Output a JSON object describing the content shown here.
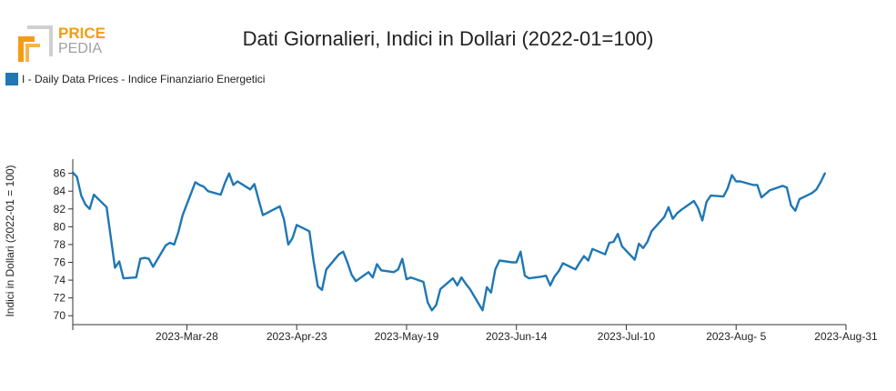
{
  "logo": {
    "line1": "PRICE",
    "line2": "PEDIA",
    "accent_color": "#f39c12",
    "text_color": "#9a9a9a"
  },
  "legend": {
    "label": "I - Daily Data Prices - Indice Finanziario Energetici",
    "color": "#1f77b4"
  },
  "chart_data": {
    "type": "line",
    "title": "Dati Giornalieri, Indici in Dollari (2022-01=100)",
    "ylabel": "Indici in Dollari (2022-01 = 100)",
    "xlabel": "",
    "ylim": [
      69,
      87.6
    ],
    "xlim": [
      "2023-03-01",
      "2023-08-31"
    ],
    "yticks": [
      70,
      72,
      74,
      76,
      78,
      80,
      82,
      84,
      86
    ],
    "xticks": [
      "2023-Mar-28",
      "2023-Apr-23",
      "2023-May-19",
      "2023-Jun-14",
      "2023-Jul-10",
      "2023-Aug- 5",
      "2023-Aug-31"
    ],
    "xtick_dates": [
      "2023-03-28",
      "2023-04-23",
      "2023-05-19",
      "2023-06-14",
      "2023-07-10",
      "2023-08-05",
      "2023-08-31"
    ],
    "grid": false,
    "legend_position": "top-left",
    "series": [
      {
        "name": "I - Daily Data Prices - Indice Finanziario Energetici",
        "color": "#1f77b4",
        "points": [
          [
            "2023-03-01",
            86.1
          ],
          [
            "2023-03-02",
            85.6
          ],
          [
            "2023-03-03",
            83.5
          ],
          [
            "2023-03-04",
            82.5
          ],
          [
            "2023-03-05",
            82.0
          ],
          [
            "2023-03-06",
            83.6
          ],
          [
            "2023-03-09",
            82.2
          ],
          [
            "2023-03-10",
            78.8
          ],
          [
            "2023-03-11",
            75.4
          ],
          [
            "2023-03-12",
            76.1
          ],
          [
            "2023-03-13",
            74.2
          ],
          [
            "2023-03-16",
            74.3
          ],
          [
            "2023-03-17",
            76.4
          ],
          [
            "2023-03-18",
            76.5
          ],
          [
            "2023-03-19",
            76.4
          ],
          [
            "2023-03-20",
            75.5
          ],
          [
            "2023-03-23",
            77.9
          ],
          [
            "2023-03-24",
            78.2
          ],
          [
            "2023-03-25",
            78.0
          ],
          [
            "2023-03-26",
            79.4
          ],
          [
            "2023-03-27",
            81.3
          ],
          [
            "2023-03-30",
            85.0
          ],
          [
            "2023-03-31",
            84.7
          ],
          [
            "2023-04-01",
            84.5
          ],
          [
            "2023-04-02",
            84.0
          ],
          [
            "2023-04-05",
            83.6
          ],
          [
            "2023-04-06",
            84.9
          ],
          [
            "2023-04-07",
            86.0
          ],
          [
            "2023-04-08",
            84.7
          ],
          [
            "2023-04-09",
            85.1
          ],
          [
            "2023-04-12",
            84.2
          ],
          [
            "2023-04-13",
            84.8
          ],
          [
            "2023-04-14",
            83.0
          ],
          [
            "2023-04-15",
            81.3
          ],
          [
            "2023-04-19",
            82.3
          ],
          [
            "2023-04-20",
            80.8
          ],
          [
            "2023-04-21",
            78.0
          ],
          [
            "2023-04-22",
            78.7
          ],
          [
            "2023-04-23",
            80.2
          ],
          [
            "2023-04-26",
            79.5
          ],
          [
            "2023-04-27",
            76.1
          ],
          [
            "2023-04-28",
            73.3
          ],
          [
            "2023-04-29",
            72.9
          ],
          [
            "2023-04-30",
            75.2
          ],
          [
            "2023-05-03",
            76.9
          ],
          [
            "2023-05-04",
            77.2
          ],
          [
            "2023-05-05",
            76.0
          ],
          [
            "2023-05-06",
            74.6
          ],
          [
            "2023-05-07",
            73.9
          ],
          [
            "2023-05-10",
            74.9
          ],
          [
            "2023-05-11",
            74.3
          ],
          [
            "2023-05-12",
            75.8
          ],
          [
            "2023-05-13",
            75.1
          ],
          [
            "2023-05-16",
            74.9
          ],
          [
            "2023-05-17",
            75.2
          ],
          [
            "2023-05-18",
            76.4
          ],
          [
            "2023-05-19",
            74.1
          ],
          [
            "2023-05-20",
            74.3
          ],
          [
            "2023-05-23",
            73.8
          ],
          [
            "2023-05-24",
            71.5
          ],
          [
            "2023-05-25",
            70.6
          ],
          [
            "2023-05-26",
            71.2
          ],
          [
            "2023-05-27",
            73.0
          ],
          [
            "2023-05-30",
            74.2
          ],
          [
            "2023-05-31",
            73.4
          ],
          [
            "2023-06-01",
            74.3
          ],
          [
            "2023-06-02",
            73.6
          ],
          [
            "2023-06-03",
            73.0
          ],
          [
            "2023-06-06",
            70.6
          ],
          [
            "2023-06-07",
            73.2
          ],
          [
            "2023-06-08",
            72.6
          ],
          [
            "2023-06-09",
            75.2
          ],
          [
            "2023-06-10",
            76.2
          ],
          [
            "2023-06-13",
            76.0
          ],
          [
            "2023-06-14",
            76.0
          ],
          [
            "2023-06-15",
            77.2
          ],
          [
            "2023-06-16",
            74.5
          ],
          [
            "2023-06-17",
            74.2
          ],
          [
            "2023-06-20",
            74.4
          ],
          [
            "2023-06-21",
            74.5
          ],
          [
            "2023-06-22",
            73.4
          ],
          [
            "2023-06-23",
            74.4
          ],
          [
            "2023-06-24",
            75.0
          ],
          [
            "2023-06-25",
            75.9
          ],
          [
            "2023-06-28",
            75.2
          ],
          [
            "2023-06-29",
            76.0
          ],
          [
            "2023-06-30",
            76.7
          ],
          [
            "2023-07-01",
            76.2
          ],
          [
            "2023-07-02",
            77.5
          ],
          [
            "2023-07-05",
            76.9
          ],
          [
            "2023-07-06",
            78.2
          ],
          [
            "2023-07-07",
            78.3
          ],
          [
            "2023-07-08",
            79.2
          ],
          [
            "2023-07-09",
            77.8
          ],
          [
            "2023-07-12",
            76.3
          ],
          [
            "2023-07-13",
            78.1
          ],
          [
            "2023-07-14",
            77.6
          ],
          [
            "2023-07-15",
            78.3
          ],
          [
            "2023-07-16",
            79.5
          ],
          [
            "2023-07-19",
            81.1
          ],
          [
            "2023-07-20",
            82.2
          ],
          [
            "2023-07-21",
            80.9
          ],
          [
            "2023-07-22",
            81.5
          ],
          [
            "2023-07-23",
            81.9
          ],
          [
            "2023-07-26",
            82.9
          ],
          [
            "2023-07-27",
            82.1
          ],
          [
            "2023-07-28",
            80.7
          ],
          [
            "2023-07-29",
            82.8
          ],
          [
            "2023-07-30",
            83.5
          ],
          [
            "2023-08-02",
            83.4
          ],
          [
            "2023-08-03",
            84.3
          ],
          [
            "2023-08-04",
            85.8
          ],
          [
            "2023-08-05",
            85.1
          ],
          [
            "2023-08-06",
            85.1
          ],
          [
            "2023-08-09",
            84.7
          ],
          [
            "2023-08-10",
            84.7
          ],
          [
            "2023-08-11",
            83.3
          ],
          [
            "2023-08-12",
            83.7
          ],
          [
            "2023-08-13",
            84.1
          ],
          [
            "2023-08-16",
            84.6
          ],
          [
            "2023-08-17",
            84.4
          ],
          [
            "2023-08-18",
            82.4
          ],
          [
            "2023-08-19",
            81.8
          ],
          [
            "2023-08-20",
            83.1
          ],
          [
            "2023-08-23",
            83.8
          ],
          [
            "2023-08-24",
            84.2
          ],
          [
            "2023-08-25",
            85.0
          ],
          [
            "2023-08-26",
            86.0
          ]
        ]
      }
    ]
  }
}
